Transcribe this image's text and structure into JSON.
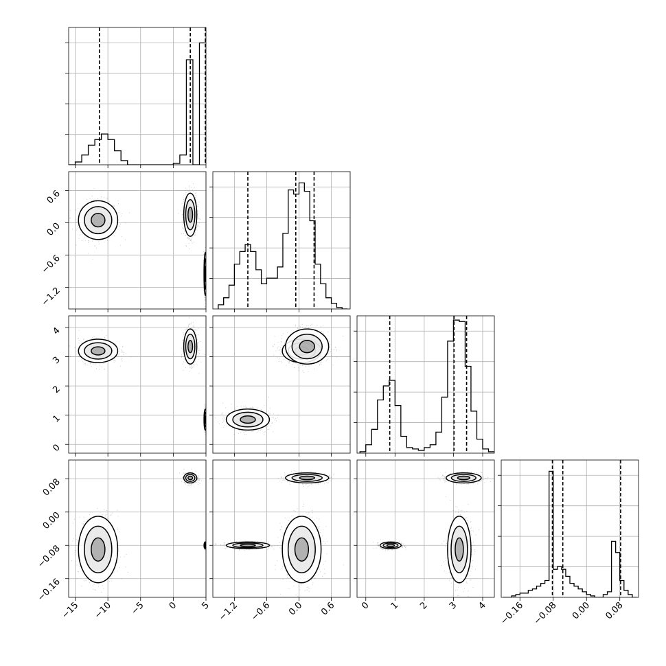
{
  "chart_data": {
    "type": "corner",
    "title": "",
    "parameters": [
      {
        "range": [
          -16,
          5
        ],
        "ticks": [
          -15,
          -10,
          -5,
          0,
          5
        ],
        "tick_labels": [
          "−15",
          "−10",
          "−5",
          "0",
          "5"
        ],
        "quantiles": [
          -11.3,
          2.6,
          4.9
        ],
        "histogram": {
          "bins": [
            -16,
            -15,
            -14,
            -13,
            -12,
            -11,
            -10,
            -9,
            -8,
            -7,
            -6,
            -5,
            -4,
            -3,
            -2,
            -1,
            0,
            1,
            2,
            3,
            4,
            5
          ],
          "counts": [
            0.0,
            0.02,
            0.07,
            0.14,
            0.18,
            0.22,
            0.18,
            0.1,
            0.03,
            0.0,
            0.0,
            0.0,
            0.0,
            0.0,
            0.0,
            0.0,
            0.01,
            0.07,
            0.75,
            0.0,
            0.87,
            0
          ]
        }
      },
      {
        "range": [
          -1.6,
          0.95
        ],
        "ticks": [
          -1.2,
          -0.6,
          0.0,
          0.6
        ],
        "tick_labels": [
          "−1.2",
          "−0.6",
          "0.0",
          "0.6"
        ],
        "quantiles": [
          -0.95,
          -0.06,
          0.28
        ],
        "histogram": {
          "bins": [
            -1.5,
            -1.4,
            -1.3,
            -1.2,
            -1.1,
            -1.0,
            -0.9,
            -0.8,
            -0.7,
            -0.6,
            -0.5,
            -0.4,
            -0.3,
            -0.2,
            -0.1,
            0.0,
            0.1,
            0.2,
            0.3,
            0.4,
            0.5,
            0.6,
            0.7,
            0.8,
            0.9
          ],
          "counts": [
            0.03,
            0.08,
            0.17,
            0.32,
            0.41,
            0.46,
            0.41,
            0.28,
            0.18,
            0.22,
            0.22,
            0.3,
            0.54,
            0.85,
            0.82,
            0.9,
            0.84,
            0.63,
            0.32,
            0.18,
            0.08,
            0.04,
            0.01,
            0
          ]
        }
      },
      {
        "range": [
          -0.3,
          4.4
        ],
        "ticks": [
          0,
          1,
          2,
          3,
          4
        ],
        "tick_labels": [
          "0",
          "1",
          "2",
          "3",
          "4"
        ],
        "quantiles": [
          0.82,
          3.02,
          3.45
        ],
        "histogram": {
          "bins": [
            -0.2,
            0.0,
            0.2,
            0.4,
            0.6,
            0.8,
            1.0,
            1.2,
            1.4,
            1.6,
            1.8,
            2.0,
            2.2,
            2.4,
            2.6,
            2.8,
            3.0,
            3.2,
            3.4,
            3.6,
            3.8,
            4.0,
            4.2,
            4.4
          ],
          "counts": [
            0.01,
            0.06,
            0.17,
            0.38,
            0.48,
            0.52,
            0.34,
            0.12,
            0.04,
            0.03,
            0.02,
            0.04,
            0.06,
            0.15,
            0.4,
            0.8,
            0.95,
            0.94,
            0.62,
            0.3,
            0.1,
            0.03,
            0.01,
            0
          ]
        }
      },
      {
        "range": [
          -0.205,
          0.125
        ],
        "ticks": [
          -0.16,
          -0.08,
          0.0,
          0.08
        ],
        "tick_labels": [
          "−0.16",
          "−0.08",
          "0.00",
          "0.08"
        ],
        "quantiles": [
          -0.082,
          -0.057,
          0.082
        ],
        "histogram": {
          "bins": [
            -0.2,
            -0.19,
            -0.18,
            -0.17,
            -0.16,
            -0.15,
            -0.14,
            -0.13,
            -0.12,
            -0.11,
            -0.1,
            -0.09,
            -0.08,
            -0.07,
            -0.06,
            -0.05,
            -0.04,
            -0.03,
            -0.02,
            -0.01,
            0.0,
            0.01,
            0.02,
            0.03,
            0.04,
            0.05,
            0.06,
            0.07,
            0.08,
            0.09,
            0.1,
            0.11,
            0.12
          ],
          "counts": [
            0.0,
            0.0,
            0.01,
            0.02,
            0.03,
            0.03,
            0.05,
            0.06,
            0.08,
            0.1,
            0.12,
            0.9,
            0.2,
            0.22,
            0.2,
            0.15,
            0.1,
            0.08,
            0.06,
            0.04,
            0.02,
            0.01,
            0.0,
            0.0,
            0.02,
            0.04,
            0.4,
            0.32,
            0.12,
            0.05,
            0.02,
            0
          ]
        }
      }
    ],
    "modes": [
      {
        "center": [
          -11.5,
          0.05,
          3.2,
          -0.09
        ],
        "sd": [
          1.5,
          0.18,
          0.2,
          0.04
        ]
      },
      {
        "center": [
          2.6,
          0.15,
          3.35,
          0.082
        ],
        "sd": [
          0.5,
          0.2,
          0.3,
          0.006
        ]
      },
      {
        "center": [
          4.9,
          -0.95,
          0.85,
          -0.08
        ],
        "sd": [
          0.1,
          0.2,
          0.18,
          0.004
        ]
      }
    ],
    "grid": true
  }
}
